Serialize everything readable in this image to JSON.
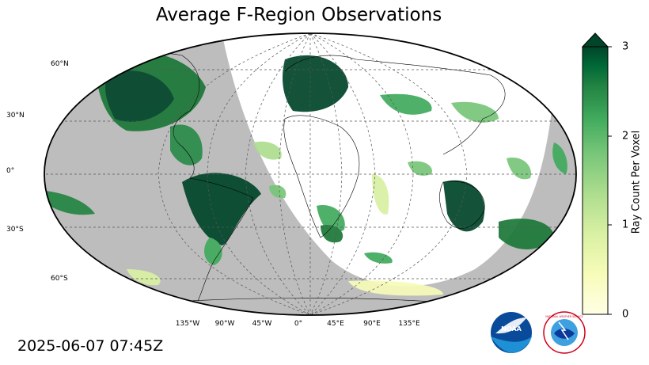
{
  "title": "Average F-Region Observations",
  "timestamp": "2025-06-07 07:45Z",
  "latitude_labels": [
    "60°N",
    "30°N",
    "0°",
    "30°S",
    "60°S"
  ],
  "longitude_labels": [
    "135°W",
    "90°W",
    "45°W",
    "0°",
    "45°E",
    "90°E",
    "135°E"
  ],
  "colorbar": {
    "label": "Ray Count Per Voxel",
    "min": 0,
    "max": 3,
    "ticks": [
      "0",
      "1",
      "2",
      "3"
    ],
    "extend": "max",
    "low_color": "#ffffe5",
    "high_color": "#004529"
  },
  "night_shading_color": "#bdbdbd",
  "logos": {
    "noaa": "NOAA",
    "nws": "NATIONAL WEATHER SERVICE"
  }
}
